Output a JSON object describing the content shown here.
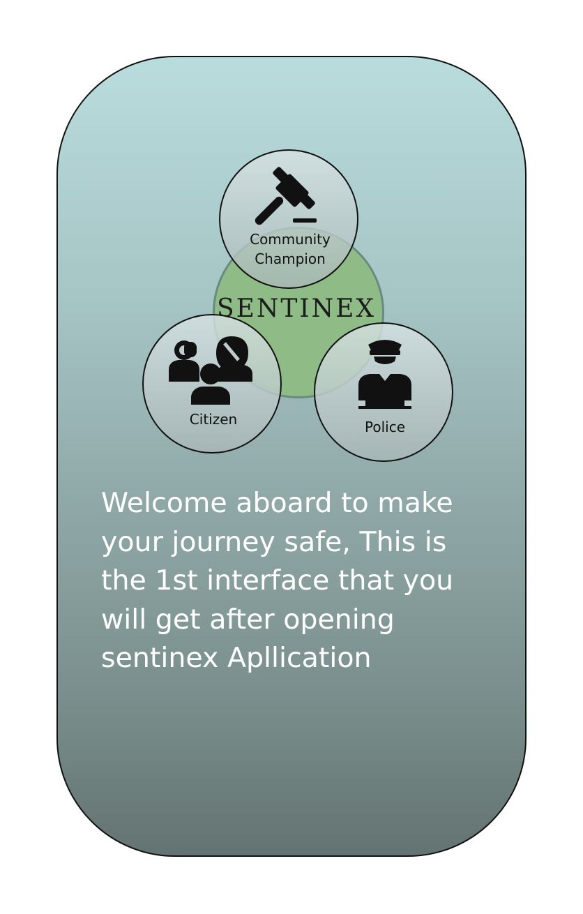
{
  "app": {
    "brand_name": "SENTINEX"
  },
  "roles": [
    {
      "id": "community-champion",
      "label": "Community\nChampion",
      "icon": "gavel-icon"
    },
    {
      "id": "citizen",
      "label": "Citizen",
      "icon": "people-icon"
    },
    {
      "id": "police",
      "label": "Police",
      "icon": "police-officer-icon"
    }
  ],
  "welcome_text": "Welcome aboard to make your journey safe, This is the 1st interface that you will get after opening sentinex Apllication",
  "colors": {
    "card_top": "#b9dcdd",
    "card_bottom": "#637371",
    "center_circle": "#8fbb86",
    "text_on_card": "#ffffff"
  }
}
